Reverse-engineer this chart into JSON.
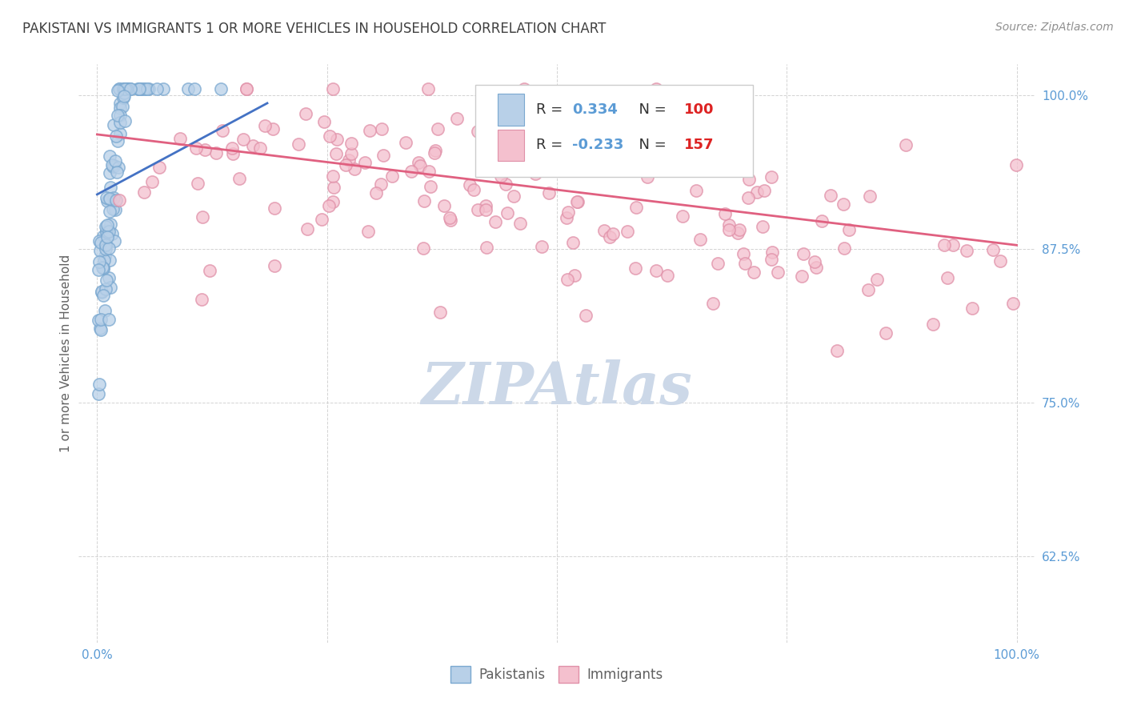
{
  "title": "PAKISTANI VS IMMIGRANTS 1 OR MORE VEHICLES IN HOUSEHOLD CORRELATION CHART",
  "source": "Source: ZipAtlas.com",
  "ylabel": "1 or more Vehicles in Household",
  "ytick_labels": [
    "100.0%",
    "87.5%",
    "75.0%",
    "62.5%"
  ],
  "ytick_values": [
    1.0,
    0.875,
    0.75,
    0.625
  ],
  "xlim": [
    -0.02,
    1.02
  ],
  "ylim": [
    0.555,
    1.025
  ],
  "legend_label1": "Pakistanis",
  "legend_label2": "Immigrants",
  "r1": "0.334",
  "n1": "100",
  "r2": "-0.233",
  "n2": "157",
  "blue_fill": "#b8d0e8",
  "blue_edge": "#7aa8d0",
  "blue_line_color": "#4472c4",
  "pink_fill": "#f4c0ce",
  "pink_edge": "#e090a8",
  "pink_line_color": "#e06080",
  "title_color": "#404040",
  "source_color": "#909090",
  "tick_color": "#5b9bd5",
  "ylabel_color": "#606060",
  "watermark_color": "#ccd8e8",
  "grid_color": "#c8c8c8",
  "legend_text_color": "#5b9bd5",
  "legend_r_color": "#333333",
  "legend_val_color": "#5b9bd5",
  "legend_n_label_color": "#5b9bd5",
  "legend_n_val_color": "#dd2222"
}
